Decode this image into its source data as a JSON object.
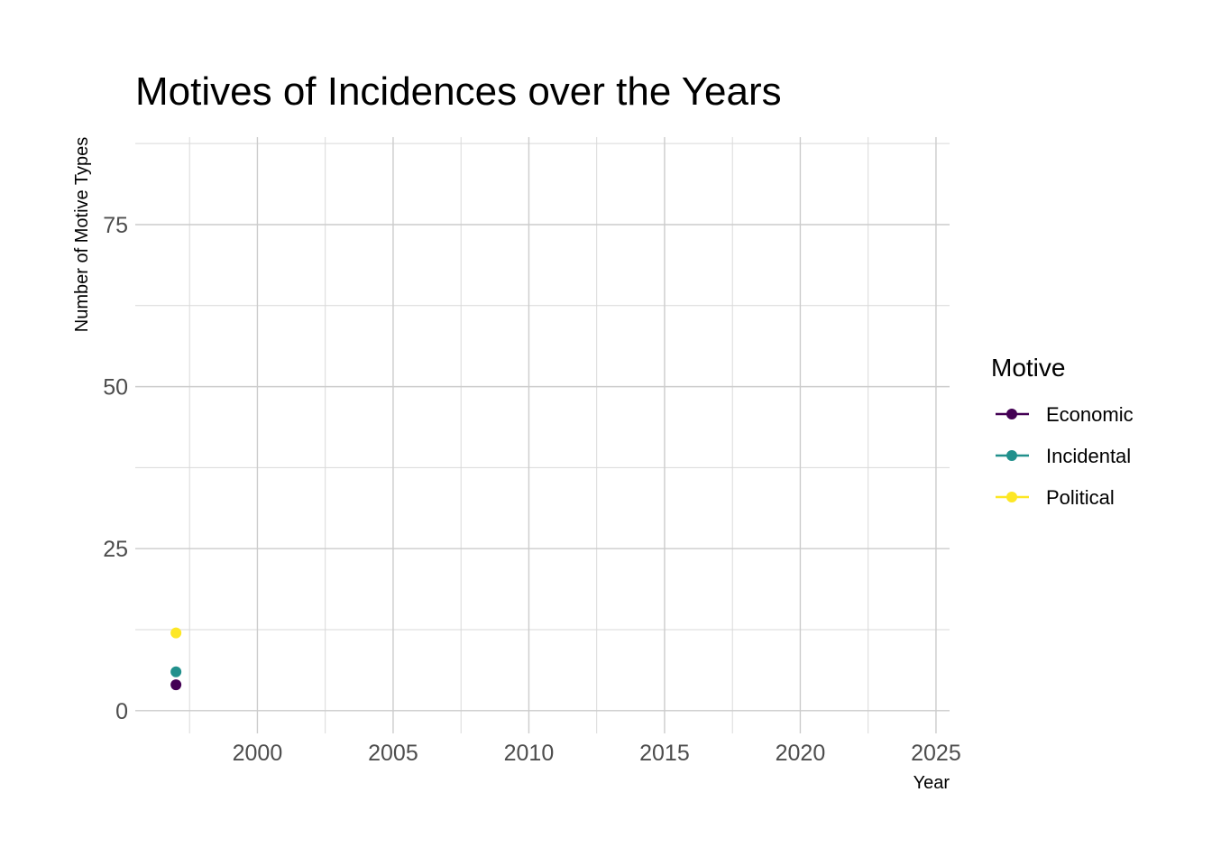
{
  "chart_data": {
    "type": "line",
    "title": "Motives of Incidences over the Years",
    "xlabel": "Year",
    "ylabel": "Number of Motive Types",
    "xlim": [
      1995.5,
      2025.5
    ],
    "ylim": [
      -3.5,
      88.5
    ],
    "x_ticks": [
      2000,
      2005,
      2010,
      2015,
      2020,
      2025
    ],
    "x_tick_labels": [
      "2000",
      "2005",
      "2010",
      "2015",
      "2020",
      "2025"
    ],
    "y_ticks": [
      0,
      25,
      50,
      75
    ],
    "y_tick_labels": [
      "0",
      "25",
      "50",
      "75"
    ],
    "grid": true,
    "legend": {
      "title": "Motive",
      "position": "right"
    },
    "series": [
      {
        "name": "Economic",
        "color": "#440154",
        "points": [
          {
            "x": 1997,
            "y": 4
          }
        ]
      },
      {
        "name": "Incidental",
        "color": "#21908C",
        "points": [
          {
            "x": 1997,
            "y": 6
          }
        ]
      },
      {
        "name": "Political",
        "color": "#FDE725",
        "points": [
          {
            "x": 1997,
            "y": 12
          }
        ]
      }
    ]
  }
}
